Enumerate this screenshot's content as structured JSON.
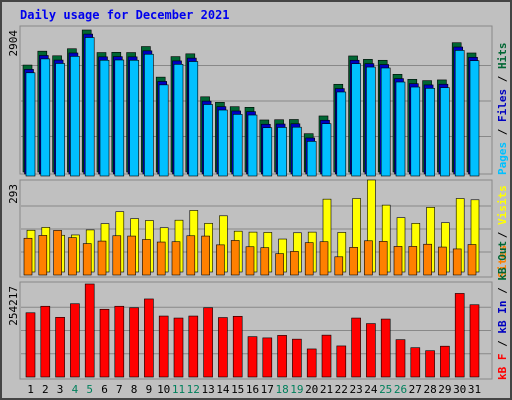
{
  "title": "Daily usage for December 2021",
  "legend_top": {
    "pages": "Pages",
    "files": "Files",
    "hits": "Hits",
    "sep": " / "
  },
  "legend_mid": {
    "sites": "Sites",
    "visits": "Visits",
    "sep": " / "
  },
  "legend_bot": {
    "kbf": "kB F",
    "kbin": "kB In",
    "kbout": "kB Out",
    "sep": " / "
  },
  "colors": {
    "hits": "#006633",
    "files": "#0000c0",
    "pages": "#00c0ff",
    "visits": "#ffff00",
    "sites": "#ff8000",
    "kbytes": "#ff0000",
    "weekend": "#00805c",
    "panel": "#c0c0c0",
    "border": "#444444",
    "title": "#0000ee"
  },
  "chart_data": [
    {
      "type": "bar",
      "title": "Daily usage for December 2021",
      "ylabel_max": "2904",
      "ylim": [
        0,
        2904
      ],
      "categories": [
        "1",
        "2",
        "3",
        "4",
        "5",
        "6",
        "7",
        "8",
        "9",
        "10",
        "11",
        "12",
        "13",
        "14",
        "15",
        "16",
        "17",
        "18",
        "19",
        "20",
        "21",
        "22",
        "23",
        "24",
        "25",
        "26",
        "27",
        "28",
        "29",
        "30",
        "31"
      ],
      "weekend_days": [
        "4",
        "5",
        "11",
        "12",
        "18",
        "19",
        "25",
        "26"
      ],
      "series": [
        {
          "name": "Hits",
          "values": [
            2187,
            2471,
            2377,
            2521,
            2904,
            2443,
            2448,
            2443,
            2566,
            1940,
            2360,
            2417,
            1538,
            1425,
            1336,
            1323,
            1064,
            1069,
            1074,
            784,
            1146,
            1794,
            2373,
            2304,
            2285,
            1998,
            1895,
            1869,
            1883,
            2644,
            2434
          ]
        },
        {
          "name": "Files",
          "values": [
            2140,
            2424,
            2330,
            2475,
            2861,
            2396,
            2401,
            2396,
            2519,
            1893,
            2313,
            2370,
            1491,
            1378,
            1289,
            1276,
            1017,
            1022,
            1027,
            737,
            1099,
            1747,
            2326,
            2257,
            2238,
            1951,
            1848,
            1822,
            1836,
            2597,
            2387
          ]
        },
        {
          "name": "Pages",
          "values": [
            2111,
            2395,
            2301,
            2446,
            2832,
            2367,
            2372,
            2367,
            2490,
            1864,
            2284,
            2341,
            1462,
            1349,
            1260,
            1247,
            988,
            993,
            998,
            708,
            1070,
            1718,
            2297,
            2228,
            2209,
            1922,
            1819,
            1793,
            1807,
            2568,
            2358
          ]
        }
      ]
    },
    {
      "type": "bar",
      "ylabel_max": "293",
      "ylim": [
        0,
        293
      ],
      "categories": [
        "1",
        "2",
        "3",
        "4",
        "5",
        "6",
        "7",
        "8",
        "9",
        "10",
        "11",
        "12",
        "13",
        "14",
        "15",
        "16",
        "17",
        "18",
        "19",
        "20",
        "21",
        "22",
        "23",
        "24",
        "25",
        "26",
        "27",
        "28",
        "29",
        "30",
        "31"
      ],
      "series": [
        {
          "name": "Visits",
          "values": [
            133,
            142,
            117,
            118,
            134,
            154,
            192,
            170,
            164,
            141,
            165,
            196,
            155,
            179,
            130,
            127,
            126,
            105,
            125,
            127,
            232,
            126,
            234,
            293,
            213,
            173,
            155,
            206,
            157,
            234,
            230
          ]
        },
        {
          "name": "Sites",
          "values": [
            117,
            126,
            142,
            119,
            100,
            108,
            125,
            124,
            113,
            105,
            106,
            125,
            124,
            96,
            110,
            90,
            87,
            68,
            75,
            103,
            106,
            58,
            88,
            109,
            107,
            91,
            91,
            98,
            89,
            83,
            97
          ]
        }
      ]
    },
    {
      "type": "bar",
      "ylabel_max": "254217",
      "ylim": [
        0,
        254217
      ],
      "categories": [
        "1",
        "2",
        "3",
        "4",
        "5",
        "6",
        "7",
        "8",
        "9",
        "10",
        "11",
        "12",
        "13",
        "14",
        "15",
        "16",
        "17",
        "18",
        "19",
        "20",
        "21",
        "22",
        "23",
        "24",
        "25",
        "26",
        "27",
        "28",
        "29",
        "30",
        "31"
      ],
      "series": [
        {
          "name": "kB F",
          "values": [
            175567,
            193405,
            163198,
            200272,
            254217,
            185166,
            193405,
            189284,
            213318,
            166632,
            161138,
            166632,
            189284,
            162511,
            165945,
            110321,
            106887,
            113755,
            103453,
            76666,
            114442,
            84907,
            161138,
            146028,
            158391,
            102079,
            80100,
            71862,
            84220,
            228424,
            197525
          ]
        }
      ]
    }
  ]
}
